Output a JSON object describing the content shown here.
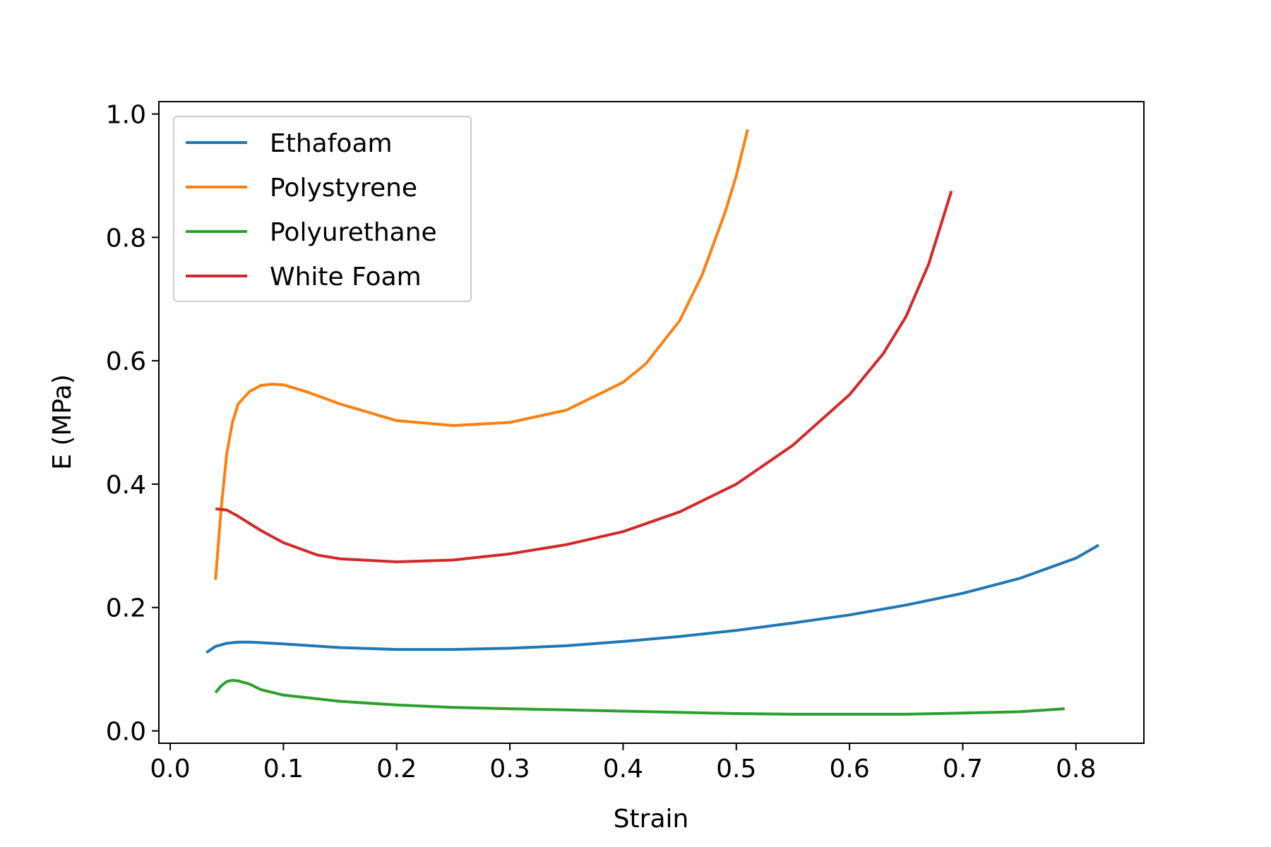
{
  "chart_data": {
    "type": "line",
    "title": "",
    "xlabel": "Strain",
    "ylabel": "E (MPa)",
    "xlim": [
      -0.01,
      0.86
    ],
    "ylim": [
      -0.02,
      1.02
    ],
    "xticks": [
      0.0,
      0.1,
      0.2,
      0.3,
      0.4,
      0.5,
      0.6,
      0.7,
      0.8
    ],
    "xtick_labels": [
      "0.0",
      "0.1",
      "0.2",
      "0.3",
      "0.4",
      "0.5",
      "0.6",
      "0.7",
      "0.8"
    ],
    "yticks": [
      0.0,
      0.2,
      0.4,
      0.6,
      0.8,
      1.0
    ],
    "ytick_labels": [
      "0.0",
      "0.2",
      "0.4",
      "0.6",
      "0.8",
      "1.0"
    ],
    "grid": false,
    "legend_position": "top-left",
    "series": [
      {
        "name": "Ethafoam",
        "color": "#1f77b4",
        "x": [
          0.032,
          0.04,
          0.05,
          0.06,
          0.07,
          0.08,
          0.1,
          0.15,
          0.2,
          0.25,
          0.3,
          0.35,
          0.4,
          0.45,
          0.5,
          0.55,
          0.6,
          0.65,
          0.7,
          0.75,
          0.8,
          0.82
        ],
        "y": [
          0.127,
          0.137,
          0.142,
          0.144,
          0.144,
          0.143,
          0.141,
          0.135,
          0.132,
          0.132,
          0.134,
          0.138,
          0.145,
          0.153,
          0.163,
          0.175,
          0.188,
          0.204,
          0.223,
          0.247,
          0.28,
          0.301
        ]
      },
      {
        "name": "Polystyrene",
        "color": "#ff7f0e",
        "x": [
          0.04,
          0.045,
          0.05,
          0.055,
          0.06,
          0.07,
          0.08,
          0.09,
          0.1,
          0.12,
          0.15,
          0.2,
          0.25,
          0.3,
          0.35,
          0.4,
          0.42,
          0.45,
          0.47,
          0.49,
          0.5,
          0.51
        ],
        "y": [
          0.245,
          0.36,
          0.45,
          0.5,
          0.53,
          0.55,
          0.56,
          0.562,
          0.561,
          0.55,
          0.53,
          0.503,
          0.495,
          0.5,
          0.52,
          0.565,
          0.595,
          0.665,
          0.74,
          0.84,
          0.9,
          0.975
        ]
      },
      {
        "name": "Polyurethane",
        "color": "#2ca02c",
        "x": [
          0.04,
          0.045,
          0.05,
          0.055,
          0.06,
          0.07,
          0.08,
          0.1,
          0.15,
          0.2,
          0.25,
          0.3,
          0.35,
          0.4,
          0.45,
          0.5,
          0.55,
          0.6,
          0.65,
          0.7,
          0.75,
          0.79
        ],
        "y": [
          0.062,
          0.073,
          0.08,
          0.082,
          0.081,
          0.076,
          0.067,
          0.058,
          0.048,
          0.042,
          0.038,
          0.036,
          0.034,
          0.032,
          0.03,
          0.028,
          0.027,
          0.027,
          0.027,
          0.029,
          0.031,
          0.036
        ]
      },
      {
        "name": "White Foam",
        "color": "#d62728",
        "x": [
          0.04,
          0.05,
          0.06,
          0.08,
          0.1,
          0.13,
          0.15,
          0.2,
          0.25,
          0.3,
          0.35,
          0.4,
          0.45,
          0.5,
          0.55,
          0.6,
          0.63,
          0.65,
          0.67,
          0.69
        ],
        "y": [
          0.36,
          0.358,
          0.348,
          0.325,
          0.305,
          0.285,
          0.279,
          0.274,
          0.277,
          0.287,
          0.302,
          0.323,
          0.355,
          0.4,
          0.463,
          0.545,
          0.612,
          0.672,
          0.757,
          0.875
        ]
      }
    ]
  }
}
